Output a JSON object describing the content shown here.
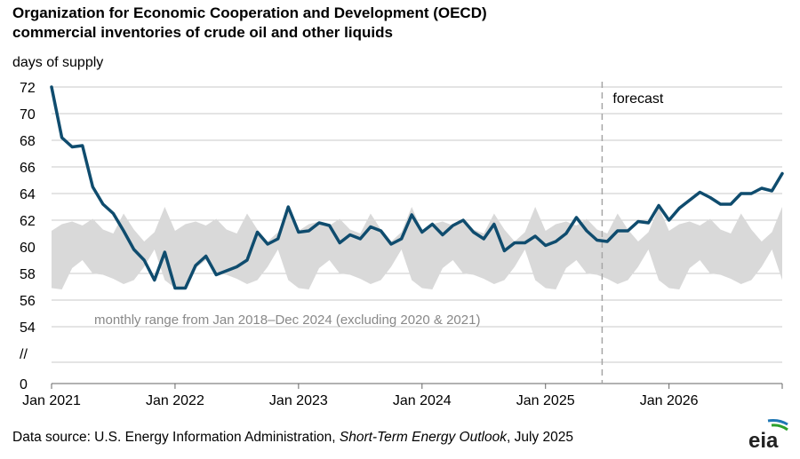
{
  "title_line1": "Organization for Economic Cooperation and Development (OECD)",
  "title_line2": "commercial inventories of crude oil and other liquids",
  "unit_label": "days of supply",
  "source": {
    "prefix": "Data source: U.S. Energy Information Administration, ",
    "publication": "Short-Term Energy Outlook",
    "suffix": ", July 2025"
  },
  "logo_text": "eia",
  "chart_data": {
    "type": "line",
    "x_start": "Jan 2021",
    "y_ticks": [
      "72",
      "70",
      "68",
      "66",
      "64",
      "62",
      "60",
      "58",
      "56",
      "54",
      "//",
      "0"
    ],
    "x_tick_labels": [
      "Jan 2021",
      "Jan 2022",
      "Jan 2023",
      "Jan 2024",
      "Jan 2025",
      "Jan 2026"
    ],
    "ylim": [
      54,
      72
    ],
    "forecast_label": "forecast",
    "forecast_start": "Jul 2025",
    "range_label": "monthly range from Jan 2018–Dec 2024 (excluding 2020 & 2021)",
    "range_low": [
      56.9,
      56.8,
      58.4,
      59.0,
      58.0,
      57.9,
      57.6,
      57.2,
      57.5,
      58.5,
      59.8,
      57.5
    ],
    "range_high": [
      61.2,
      61.7,
      61.9,
      61.6,
      62.1,
      61.3,
      61.0,
      62.5,
      61.3,
      60.4,
      61.1,
      63.0
    ],
    "series": [
      {
        "values": [
          72.0,
          68.2,
          67.5,
          67.6,
          64.5,
          63.2,
          62.5,
          61.2,
          59.8,
          59.0,
          57.5,
          59.6,
          56.9,
          56.9,
          58.6,
          59.3,
          57.9,
          58.2,
          58.5,
          59.0,
          61.1,
          60.2,
          60.6,
          63.0,
          61.1,
          61.2,
          61.8,
          61.6,
          60.3,
          60.9,
          60.6,
          61.5,
          61.2,
          60.2,
          60.6,
          62.4,
          61.1,
          61.7,
          60.9,
          61.6,
          62.0,
          61.1,
          60.6,
          61.7,
          59.7,
          60.3,
          60.3,
          60.8,
          60.1,
          60.4,
          61.0,
          62.2,
          61.2,
          60.5,
          60.4,
          61.2,
          61.2,
          61.9,
          61.8,
          63.1,
          62.0,
          62.9,
          63.5,
          64.1,
          63.7,
          63.2,
          63.2,
          64.0,
          64.0,
          64.4,
          64.2,
          65.5
        ],
        "color": "#0f4c6e"
      }
    ],
    "colors": {
      "line": "#0f4c6e",
      "range": "#d9d9d9",
      "grid": "#c8c8c8",
      "axis": "#666666",
      "forecast": "#a6a6a6",
      "range_text": "#888888"
    }
  }
}
